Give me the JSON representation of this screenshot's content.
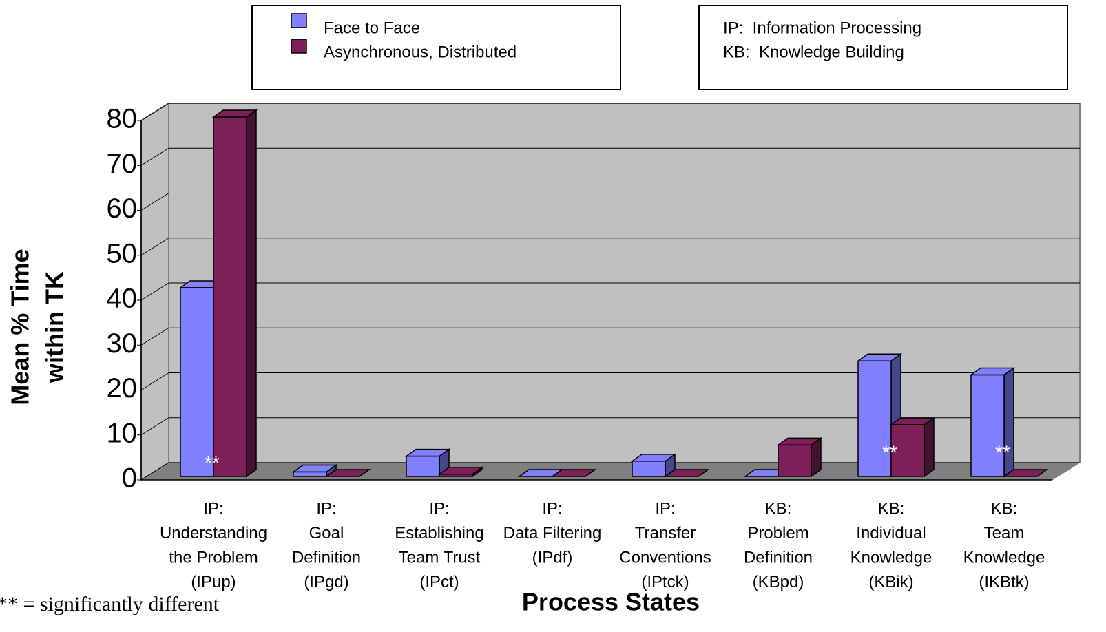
{
  "chart_data": {
    "type": "bar3d",
    "x_label": "Process States",
    "y_label": [
      "Mean % Time",
      "within TK"
    ],
    "categories": [
      [
        "IP:",
        "Understanding",
        "the Problem",
        "(IPup)"
      ],
      [
        "IP:",
        "Goal",
        "Definition",
        "(IPgd)"
      ],
      [
        "IP:",
        "Establishing",
        "Team Trust",
        "(IPct)"
      ],
      [
        "IP:",
        "Data Filtering",
        "(IPdf)"
      ],
      [
        "IP:",
        "Transfer",
        "Conventions",
        "(IPtck)"
      ],
      [
        "KB:",
        "Problem",
        "Definition",
        "(KBpd)"
      ],
      [
        "KB:",
        "Individual",
        "Knowledge",
        "(KBik)"
      ],
      [
        "KB:",
        "Team",
        "Knowledge",
        "(IKBtk)"
      ]
    ],
    "series": [
      {
        "name": "Face to Face",
        "color": "#8080ff",
        "values": [
          42,
          1,
          4.5,
          0,
          3.4,
          0,
          25.7,
          22.6
        ]
      },
      {
        "name": "Asynchronous, Distributed",
        "color": "#7f1f5a",
        "values": [
          80,
          0,
          0.5,
          0,
          0,
          7,
          11.5,
          0
        ]
      }
    ],
    "annotations": [
      "**",
      null,
      null,
      null,
      null,
      null,
      "**",
      "**"
    ],
    "notes": [
      "IP:  Information Processing",
      "KB:  Knowledge Building"
    ],
    "footnote": "** = significantly different",
    "ylim": [
      0,
      80
    ],
    "yticks": [
      0,
      10,
      20,
      30,
      40,
      50,
      60,
      70,
      80
    ],
    "grid": true
  }
}
